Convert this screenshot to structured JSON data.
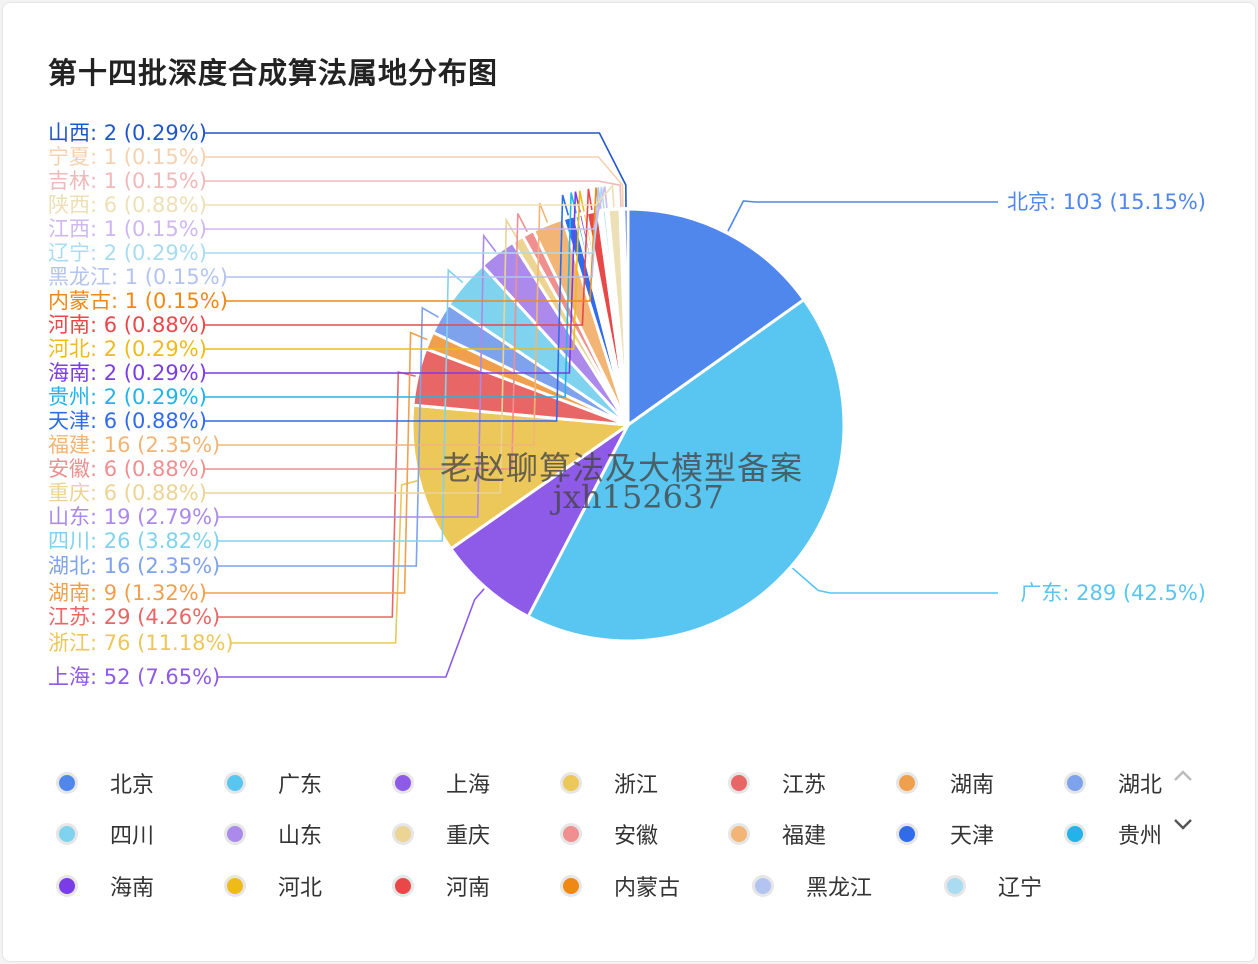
{
  "title": "第十四批深度合成算法属地分布图",
  "watermark": {
    "line1": "老赵聊算法及大模型备案",
    "line2": "jxh152637"
  },
  "chart_data": {
    "type": "pie",
    "title": "第十四批深度合成算法属地分布图",
    "slices": [
      {
        "name": "北京",
        "value": 103,
        "percent": "15.15%",
        "color": "#5087ec"
      },
      {
        "name": "广东",
        "value": 289,
        "percent": "42.5%",
        "color": "#58c6f0"
      },
      {
        "name": "上海",
        "value": 52,
        "percent": "7.65%",
        "color": "#8e5ae8"
      },
      {
        "name": "浙江",
        "value": 76,
        "percent": "11.18%",
        "color": "#ecc75a"
      },
      {
        "name": "江苏",
        "value": 29,
        "percent": "4.26%",
        "color": "#e96666"
      },
      {
        "name": "湖南",
        "value": 9,
        "percent": "1.32%",
        "color": "#f0a04d"
      },
      {
        "name": "湖北",
        "value": 16,
        "percent": "2.35%",
        "color": "#7fa2ec"
      },
      {
        "name": "四川",
        "value": 26,
        "percent": "3.82%",
        "color": "#7fd3ee"
      },
      {
        "name": "山东",
        "value": 19,
        "percent": "2.79%",
        "color": "#ab8aeb"
      },
      {
        "name": "重庆",
        "value": 6,
        "percent": "0.88%",
        "color": "#ecd494"
      },
      {
        "name": "安徽",
        "value": 6,
        "percent": "0.88%",
        "color": "#ef8f8f"
      },
      {
        "name": "福建",
        "value": 16,
        "percent": "2.35%",
        "color": "#f2b575"
      },
      {
        "name": "天津",
        "value": 6,
        "percent": "0.88%",
        "color": "#2f6bea"
      },
      {
        "name": "贵州",
        "value": 2,
        "percent": "0.29%",
        "color": "#22b3e8"
      },
      {
        "name": "海南",
        "value": 2,
        "percent": "0.29%",
        "color": "#7a3de5"
      },
      {
        "name": "河北",
        "value": 2,
        "percent": "0.29%",
        "color": "#eebb1b"
      },
      {
        "name": "河南",
        "value": 6,
        "percent": "0.88%",
        "color": "#e84848"
      },
      {
        "name": "内蒙古",
        "value": 1,
        "percent": "0.15%",
        "color": "#f08914"
      },
      {
        "name": "黑龙江",
        "value": 1,
        "percent": "0.15%",
        "color": "#b2c4ef"
      },
      {
        "name": "辽宁",
        "value": 2,
        "percent": "0.29%",
        "color": "#a9dcf0"
      },
      {
        "name": "江西",
        "value": 1,
        "percent": "0.15%",
        "color": "#cfb7f0"
      },
      {
        "name": "陕西",
        "value": 6,
        "percent": "0.88%",
        "color": "#ede0b6"
      },
      {
        "name": "吉林",
        "value": 1,
        "percent": "0.15%",
        "color": "#f0b9b9"
      },
      {
        "name": "宁夏",
        "value": 1,
        "percent": "0.15%",
        "color": "#f5d1b0"
      },
      {
        "name": "山西",
        "value": 2,
        "percent": "0.29%",
        "color": "#2057c8"
      }
    ],
    "legend_position": "bottom"
  },
  "legend_items": [
    "北京",
    "广东",
    "上海",
    "浙江",
    "江苏",
    "湖南",
    "湖北",
    "四川",
    "山东",
    "重庆",
    "安徽",
    "福建",
    "天津",
    "贵州",
    "海南",
    "河北",
    "河南",
    "内蒙古",
    "黑龙江",
    "辽宁"
  ],
  "pager": {
    "up_icon": "chevron-up-icon",
    "down_icon": "chevron-down-icon"
  }
}
